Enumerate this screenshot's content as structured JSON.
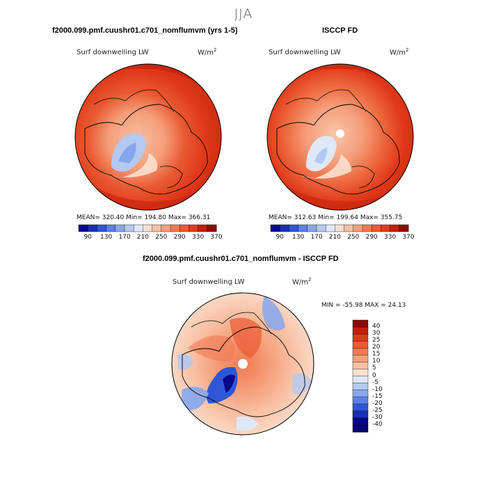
{
  "season": "JJA",
  "left": {
    "title": "f2000.099.pmf.cuushr01.c701_nomflumvm (yrs 1-5)",
    "subtitle": "Surf downwelling LW",
    "units": "W/m",
    "units_sup": "2",
    "stats": "MEAN= 320.40   Min= 194.80   Max= 366.31"
  },
  "right": {
    "title": "ISCCP FD",
    "subtitle": "Surf downwelling LW",
    "units": "W/m",
    "units_sup": "2",
    "stats": "MEAN= 312.63   Min= 199.64   Max= 355.75"
  },
  "bottom": {
    "title": "f2000.099.pmf.cuushr01.c701_nomflumvm - ISCCP FD",
    "subtitle": "Surf downwelling LW",
    "units": "W/m",
    "units_sup": "2",
    "stats": "MIN = -55.98 MAX =  24.13"
  },
  "colorbar_abs": {
    "tick_labels": [
      "90",
      "130",
      "170",
      "210",
      "250",
      "290",
      "330",
      "370"
    ],
    "colors": [
      "#08088c",
      "#1a2fb5",
      "#2f56d6",
      "#5a80e6",
      "#86a6ee",
      "#b3c8f3",
      "#dfe8f8",
      "#fbe0d0",
      "#f8c0a4",
      "#f59e7a",
      "#f07a52",
      "#ea5a33",
      "#e03a1a",
      "#c41e0c",
      "#8c0a04"
    ]
  },
  "colorbar_diff": {
    "tick_labels": [
      "40",
      "30",
      "25",
      "20",
      "15",
      "10",
      "5",
      "0",
      "-5",
      "-10",
      "-15",
      "-20",
      "-25",
      "-30",
      "-40"
    ],
    "colors": [
      "#8c0a04",
      "#c41e0c",
      "#e03a1a",
      "#ea5a33",
      "#f07a52",
      "#f59e7a",
      "#f8c0a4",
      "#fbe0d0",
      "#dfe8f8",
      "#b3c8f3",
      "#86a6ee",
      "#5a80e6",
      "#2f56d6",
      "#1a2fb5",
      "#08088c",
      "#060670"
    ]
  }
}
